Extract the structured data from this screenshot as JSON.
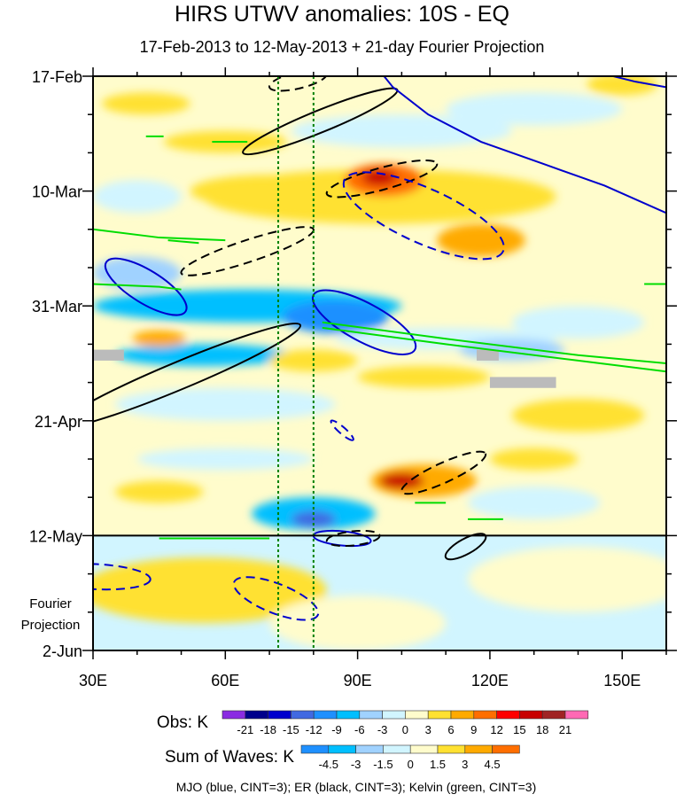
{
  "chart_data": {
    "type": "heatmap",
    "title": "HIRS UTWV anomalies: 10S - EQ",
    "subtitle": "17-Feb-2013 to 12-May-2013 + 21-day Fourier Projection",
    "x_ticks": [
      {
        "lon": 30,
        "label": "30E"
      },
      {
        "lon": 60,
        "label": "60E"
      },
      {
        "lon": 90,
        "label": "90E"
      },
      {
        "lon": 120,
        "label": "120E"
      },
      {
        "lon": 150,
        "label": "150E"
      }
    ],
    "xlim": [
      30,
      160
    ],
    "y_ticks": [
      {
        "day": 0,
        "label": "17-Feb"
      },
      {
        "day": 21,
        "label": "10-Mar"
      },
      {
        "day": 42,
        "label": "31-Mar"
      },
      {
        "day": 63,
        "label": "21-Apr"
      },
      {
        "day": 84,
        "label": "12-May"
      },
      {
        "day": 105,
        "label": "2-Jun"
      }
    ],
    "ylim_days": [
      0,
      105
    ],
    "projection_start_day": 84,
    "projection_label": [
      "Fourier",
      "Projection"
    ],
    "reference_lines": {
      "color": "#008000",
      "lons": [
        72,
        80
      ],
      "style": "dotted"
    },
    "background_obs_value": 0.5,
    "background_proj_value": -1,
    "anomaly_features": [
      {
        "lon": 95,
        "day": 22,
        "rlon": 40,
        "rday": 5,
        "value": 4
      },
      {
        "lon": 70,
        "day": 21,
        "rlon": 18,
        "rday": 3,
        "value": 4
      },
      {
        "lon": 96,
        "day": 19,
        "rlon": 9,
        "rday": 3,
        "value": 10
      },
      {
        "lon": 95,
        "day": 18.5,
        "rlon": 4,
        "rday": 1.5,
        "value": 16
      },
      {
        "lon": 60,
        "day": 12,
        "rlon": 14,
        "rday": 2,
        "value": 4
      },
      {
        "lon": 82,
        "day": 10,
        "rlon": 6,
        "rday": 2,
        "value": 4
      },
      {
        "lon": 118,
        "day": 30,
        "rlon": 10,
        "rday": 3,
        "value": 7
      },
      {
        "lon": 150,
        "day": 1.5,
        "rlon": 8,
        "rday": 2,
        "value": 4
      },
      {
        "lon": 42,
        "day": 5,
        "rlon": 10,
        "rday": 2,
        "value": 4
      },
      {
        "lon": 100,
        "day": 10,
        "rlon": 25,
        "rday": 3,
        "value": -2
      },
      {
        "lon": 130,
        "day": 6,
        "rlon": 20,
        "rday": 3,
        "value": -2
      },
      {
        "lon": 40,
        "day": 22,
        "rlon": 10,
        "rday": 3,
        "value": -2
      },
      {
        "lon": 65,
        "day": 42,
        "rlon": 35,
        "rday": 3,
        "value": -7
      },
      {
        "lon": 85,
        "day": 44,
        "rlon": 12,
        "rday": 3,
        "value": -10
      },
      {
        "lon": 40,
        "day": 36,
        "rlon": 10,
        "rday": 3,
        "value": -5
      },
      {
        "lon": 55,
        "day": 51,
        "rlon": 20,
        "rday": 2,
        "value": -8
      },
      {
        "lon": 45,
        "day": 48,
        "rlon": 6,
        "rday": 1.5,
        "value": 8
      },
      {
        "lon": 110,
        "day": 48,
        "rlon": 25,
        "rday": 2,
        "value": -3
      },
      {
        "lon": 125,
        "day": 50,
        "rlon": 12,
        "rday": 2,
        "value": -6
      },
      {
        "lon": 80,
        "day": 52,
        "rlon": 10,
        "rday": 2,
        "value": 4
      },
      {
        "lon": 105,
        "day": 55,
        "rlon": 15,
        "rday": 2,
        "value": 4
      },
      {
        "lon": 140,
        "day": 45,
        "rlon": 15,
        "rday": 3,
        "value": -3
      },
      {
        "lon": 60,
        "day": 60,
        "rlon": 25,
        "rday": 3,
        "value": -3
      },
      {
        "lon": 140,
        "day": 62,
        "rlon": 15,
        "rday": 3,
        "value": 4
      },
      {
        "lon": 60,
        "day": 70,
        "rlon": 20,
        "rday": 2,
        "value": -3
      },
      {
        "lon": 105,
        "day": 74,
        "rlon": 12,
        "rday": 3,
        "value": 7
      },
      {
        "lon": 100,
        "day": 74,
        "rlon": 5,
        "rday": 1.5,
        "value": 16
      },
      {
        "lon": 80,
        "day": 80,
        "rlon": 14,
        "rday": 3,
        "value": -8
      },
      {
        "lon": 80,
        "day": 81,
        "rlon": 5,
        "rday": 1.5,
        "value": -14
      },
      {
        "lon": 45,
        "day": 76,
        "rlon": 10,
        "rday": 2,
        "value": 4
      },
      {
        "lon": 130,
        "day": 78,
        "rlon": 15,
        "rday": 3,
        "value": -3
      },
      {
        "lon": 130,
        "day": 70,
        "rlon": 10,
        "rday": 2,
        "value": 4
      }
    ],
    "projection_features": [
      {
        "lon": 55,
        "day": 94,
        "rlon": 28,
        "rday": 6,
        "value": 2
      },
      {
        "lon": 90,
        "day": 100,
        "rlon": 20,
        "rday": 5,
        "value": 1
      },
      {
        "lon": 140,
        "day": 92,
        "rlon": 25,
        "rday": 6,
        "value": 0.5
      }
    ],
    "missing_boxes": [
      {
        "lon": [
          30,
          37
        ],
        "day": [
          50,
          52
        ]
      },
      {
        "lon": [
          117,
          122
        ],
        "day": [
          50,
          52
        ]
      },
      {
        "lon": [
          120,
          135
        ],
        "day": [
          55,
          57
        ]
      }
    ],
    "contours": [
      {
        "wave": "ER",
        "color": "#000000",
        "dashed": false,
        "p1": [
          64,
          14
        ],
        "p2": [
          99,
          2.5
        ],
        "minor": 2
      },
      {
        "wave": "ER",
        "color": "#000000",
        "dashed": true,
        "p1": [
          70,
          2
        ],
        "p2": [
          83,
          -0.5
        ],
        "minor": 1.5
      },
      {
        "wave": "ER",
        "color": "#000000",
        "dashed": true,
        "p1": [
          83,
          21.5
        ],
        "p2": [
          108,
          16
        ],
        "minor": 2
      },
      {
        "wave": "MJO",
        "color": "#0000cd",
        "dashed": true,
        "p1": [
          87,
          19
        ],
        "p2": [
          123,
          32
        ],
        "minor": 5
      },
      {
        "wave": "ER",
        "color": "#000000",
        "dashed": true,
        "p1": [
          50,
          36
        ],
        "p2": [
          80,
          28
        ],
        "minor": 2
      },
      {
        "wave": "MJO",
        "color": "#0000cd",
        "dashed": false,
        "p1": [
          33,
          34
        ],
        "p2": [
          51,
          43
        ],
        "minor": 3
      },
      {
        "wave": "MJO",
        "color": "#0000cd",
        "dashed": false,
        "p1": [
          80,
          40
        ],
        "p2": [
          103,
          50
        ],
        "minor": 3.5
      },
      {
        "wave": "ER",
        "color": "#000000",
        "dashed": false,
        "p1": [
          22,
          64
        ],
        "p2": [
          77,
          45.5
        ],
        "minor": 2.5
      },
      {
        "wave": "MJO",
        "color": "#0000cd",
        "dashed": true,
        "p1": [
          84,
          63
        ],
        "p2": [
          89,
          66.5
        ],
        "minor": 0.6
      },
      {
        "wave": "ER",
        "color": "#000000",
        "dashed": true,
        "p1": [
          100,
          76
        ],
        "p2": [
          119,
          69
        ],
        "minor": 1.8
      },
      {
        "wave": "MJO",
        "color": "#0000cd",
        "dashed": true,
        "p1": [
          62,
          92.5
        ],
        "p2": [
          81,
          98.5
        ],
        "minor": 2.7
      },
      {
        "wave": "MJO",
        "color": "#0000cd",
        "dashed": true,
        "p1": [
          18,
          91
        ],
        "p2": [
          43,
          92
        ],
        "minor": 2.3
      },
      {
        "wave": "MJO",
        "color": "#0000cd",
        "dashed": false,
        "p1": [
          80,
          84
        ],
        "p2": [
          93,
          85
        ],
        "minor": 1.3
      },
      {
        "wave": "ER",
        "color": "#000000",
        "dashed": true,
        "p1": [
          83,
          85
        ],
        "p2": [
          95,
          84
        ],
        "minor": 1.3
      },
      {
        "wave": "ER",
        "color": "#000000",
        "dashed": false,
        "p1": [
          110,
          88
        ],
        "p2": [
          119,
          84
        ],
        "minor": 1.4
      }
    ],
    "lines": [
      {
        "wave": "MJO",
        "color": "#0000cd",
        "dashed": false,
        "points": [
          [
            96,
            0
          ],
          [
            98,
            2
          ],
          [
            106,
            7
          ],
          [
            118,
            12
          ],
          [
            132,
            16
          ],
          [
            146,
            20
          ],
          [
            160,
            25
          ]
        ]
      },
      {
        "wave": "MJO",
        "color": "#0000cd",
        "dashed": false,
        "points": [
          [
            148,
            0
          ],
          [
            153,
            1
          ],
          [
            160,
            2
          ]
        ]
      },
      {
        "wave": "Kelvin",
        "color": "#00dd00",
        "dashed": false,
        "points": [
          [
            30,
            28
          ],
          [
            45,
            29.5
          ],
          [
            60,
            30
          ]
        ]
      },
      {
        "wave": "Kelvin",
        "color": "#00dd00",
        "dashed": false,
        "points": [
          [
            30,
            38
          ],
          [
            45,
            38.5
          ],
          [
            50,
            39
          ]
        ]
      },
      {
        "wave": "Kelvin",
        "color": "#00dd00",
        "dashed": false,
        "points": [
          [
            82,
            46
          ],
          [
            110,
            49
          ],
          [
            140,
            52
          ],
          [
            160,
            54
          ]
        ]
      },
      {
        "wave": "Kelvin",
        "color": "#00dd00",
        "dashed": false,
        "points": [
          [
            82,
            45
          ],
          [
            110,
            48
          ],
          [
            140,
            51
          ],
          [
            160,
            52.5
          ]
        ]
      },
      {
        "wave": "Kelvin",
        "color": "#00dd00",
        "dashed": false,
        "points": [
          [
            42,
            11
          ],
          [
            46,
            11
          ]
        ]
      },
      {
        "wave": "Kelvin",
        "color": "#00dd00",
        "dashed": false,
        "points": [
          [
            57,
            12
          ],
          [
            65,
            12
          ]
        ]
      },
      {
        "wave": "Kelvin",
        "color": "#00dd00",
        "dashed": false,
        "points": [
          [
            47,
            30
          ],
          [
            54,
            30.5
          ]
        ]
      },
      {
        "wave": "Kelvin",
        "color": "#00dd00",
        "dashed": false,
        "points": [
          [
            155,
            38
          ],
          [
            160,
            38
          ]
        ]
      },
      {
        "wave": "Kelvin",
        "color": "#00dd00",
        "dashed": false,
        "points": [
          [
            45,
            84.5
          ],
          [
            70,
            84.5
          ]
        ]
      },
      {
        "wave": "Kelvin",
        "color": "#00dd00",
        "dashed": false,
        "points": [
          [
            115,
            81
          ],
          [
            123,
            81
          ]
        ]
      },
      {
        "wave": "Kelvin",
        "color": "#00dd00",
        "dashed": false,
        "points": [
          [
            103,
            78
          ],
          [
            110,
            78
          ]
        ]
      }
    ],
    "obs_colorbar": {
      "label": "Obs: K",
      "colors": [
        "#8a2be2",
        "#00008b",
        "#0000cd",
        "#4169e1",
        "#1e90ff",
        "#00bfff",
        "#a0d2ff",
        "#d1f5ff",
        "#fffccc",
        "#ffe131",
        "#ffaa00",
        "#ff6e00",
        "#ff0000",
        "#c80000",
        "#a02323",
        "#ff69b4"
      ],
      "levels": [
        "-21",
        "-18",
        "-15",
        "-12",
        "-9",
        "-6",
        "-3",
        "0",
        "3",
        "6",
        "9",
        "12",
        "15",
        "18",
        "21"
      ]
    },
    "waves_colorbar": {
      "label": "Sum of Waves: K",
      "colors": [
        "#1e90ff",
        "#00bfff",
        "#a0d2ff",
        "#d1f5ff",
        "#fffccc",
        "#ffe131",
        "#ffaa00",
        "#ff6e00"
      ],
      "levels": [
        "-4.5",
        "-3",
        "-1.5",
        "0",
        "1.5",
        "3",
        "4.5"
      ]
    },
    "legend_note": "MJO (blue, CINT=3); ER (black, CINT=3); Kelvin (green, CINT=3)"
  }
}
